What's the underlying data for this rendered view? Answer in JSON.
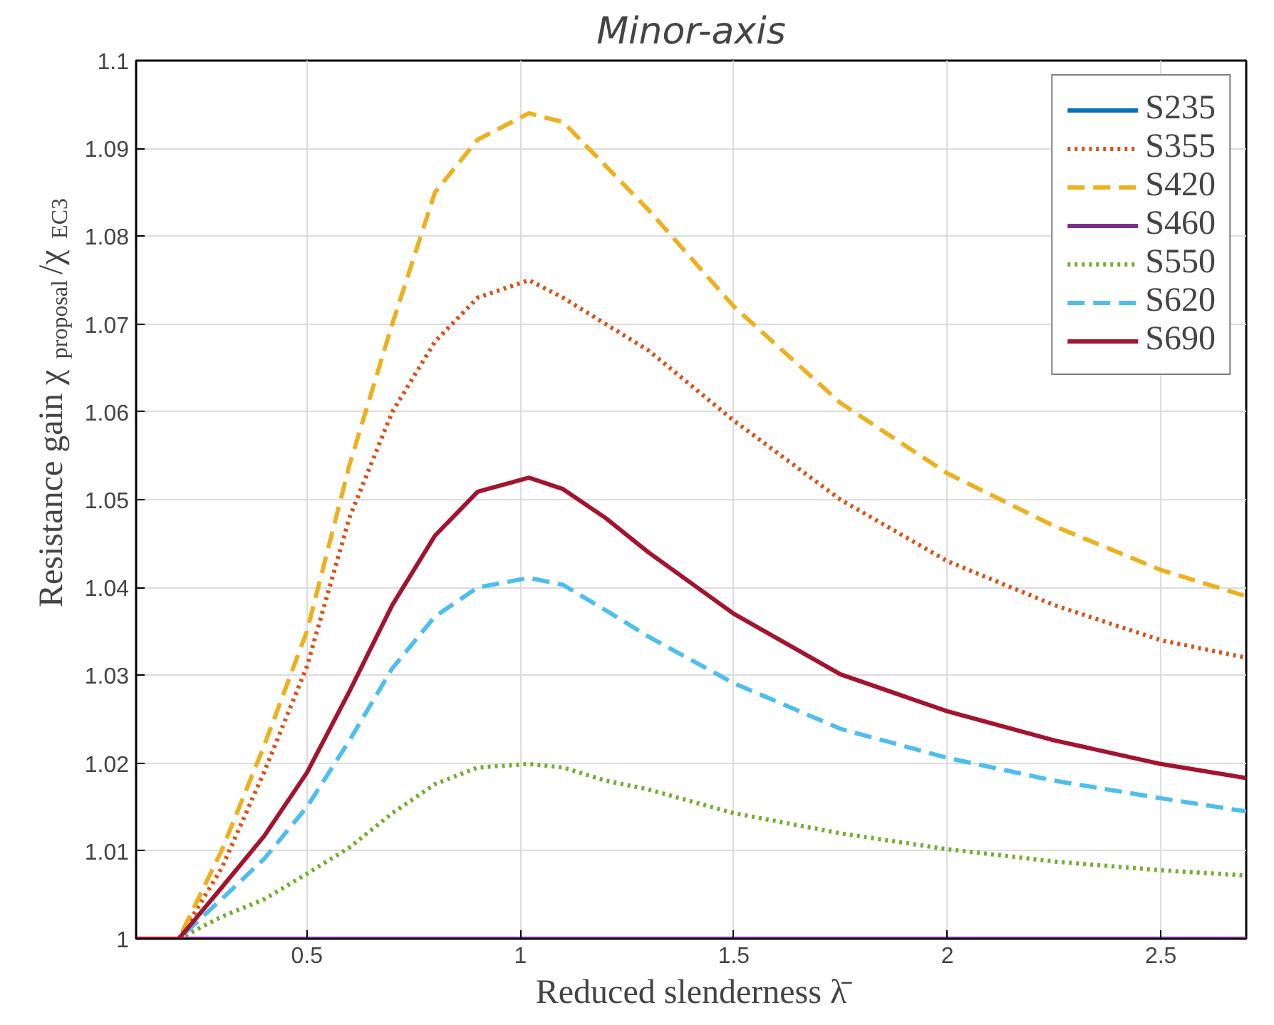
{
  "chart_data": {
    "type": "line",
    "title": "Minor-axis",
    "xlabel": "Reduced slenderness λ̄",
    "ylabel": "Resistance gain χ$_{proposal}$/χ$_{EC3}$",
    "xlim": [
      0.1,
      2.7
    ],
    "ylim": [
      1,
      1.1
    ],
    "xticks": [
      0.5,
      1,
      1.5,
      2,
      2.5
    ],
    "yticks": [
      1,
      1.01,
      1.02,
      1.03,
      1.04,
      1.05,
      1.06,
      1.07,
      1.08,
      1.09,
      1.1
    ],
    "grid": true,
    "legend": "top right",
    "x": [
      0.1,
      0.2,
      0.3,
      0.4,
      0.5,
      0.6,
      0.7,
      0.8,
      0.9,
      1.02,
      1.1,
      1.2,
      1.3,
      1.5,
      1.75,
      2,
      2.25,
      2.5,
      2.7
    ],
    "series": [
      {
        "name": "S235",
        "color": "#0072bd",
        "line_style": "solid",
        "values": [
          null,
          null,
          null,
          null,
          null,
          null,
          null,
          null,
          null,
          null,
          null,
          null,
          null,
          null,
          null,
          null,
          null,
          null,
          null
        ]
      },
      {
        "name": "S355",
        "color": "#d95319",
        "line_style": "dotted",
        "values": [
          1,
          1,
          1.008,
          1.019,
          1.031,
          1.048,
          1.06,
          1.068,
          1.073,
          1.075,
          1.073,
          1.07,
          1.067,
          1.059,
          1.05,
          1.043,
          1.038,
          1.034,
          1.032
        ]
      },
      {
        "name": "S420",
        "color": "#edb120",
        "line_style": "dashed",
        "values": [
          1,
          1,
          1.01,
          1.022,
          1.035,
          1.054,
          1.07,
          1.085,
          1.091,
          1.094,
          1.093,
          1.088,
          1.083,
          1.072,
          1.061,
          1.053,
          1.047,
          1.042,
          1.039
        ]
      },
      {
        "name": "S460",
        "color": "#7e2f8e",
        "line_style": "solid",
        "values": [
          1,
          1,
          1,
          1,
          1,
          1,
          1,
          1,
          1,
          1,
          1,
          1,
          1,
          1,
          1,
          1,
          1,
          1,
          1
        ]
      },
      {
        "name": "S550",
        "color": "#77ac30",
        "line_style": "dotted",
        "values": [
          1,
          1,
          1.0025,
          1.0045,
          1.0074,
          1.0104,
          1.0143,
          1.0176,
          1.0195,
          1.0199,
          1.0195,
          1.018,
          1.017,
          1.0143,
          1.012,
          1.0102,
          1.0088,
          1.0078,
          1.0072
        ]
      },
      {
        "name": "S620",
        "color": "#4dbeee",
        "line_style": "dashed",
        "values": [
          1,
          1,
          1.0045,
          1.0091,
          1.015,
          1.0226,
          1.0308,
          1.0367,
          1.04,
          1.0411,
          1.0403,
          1.0374,
          1.0344,
          1.0291,
          1.0239,
          1.0206,
          1.018,
          1.016,
          1.0145
        ]
      },
      {
        "name": "S690",
        "color": "#a2142f",
        "line_style": "solid",
        "values": [
          1,
          1,
          1.0058,
          1.0117,
          1.0189,
          1.0282,
          1.038,
          1.0459,
          1.0509,
          1.0525,
          1.0512,
          1.0479,
          1.044,
          1.037,
          1.0301,
          1.0259,
          1.0226,
          1.0199,
          1.0183
        ]
      }
    ]
  }
}
